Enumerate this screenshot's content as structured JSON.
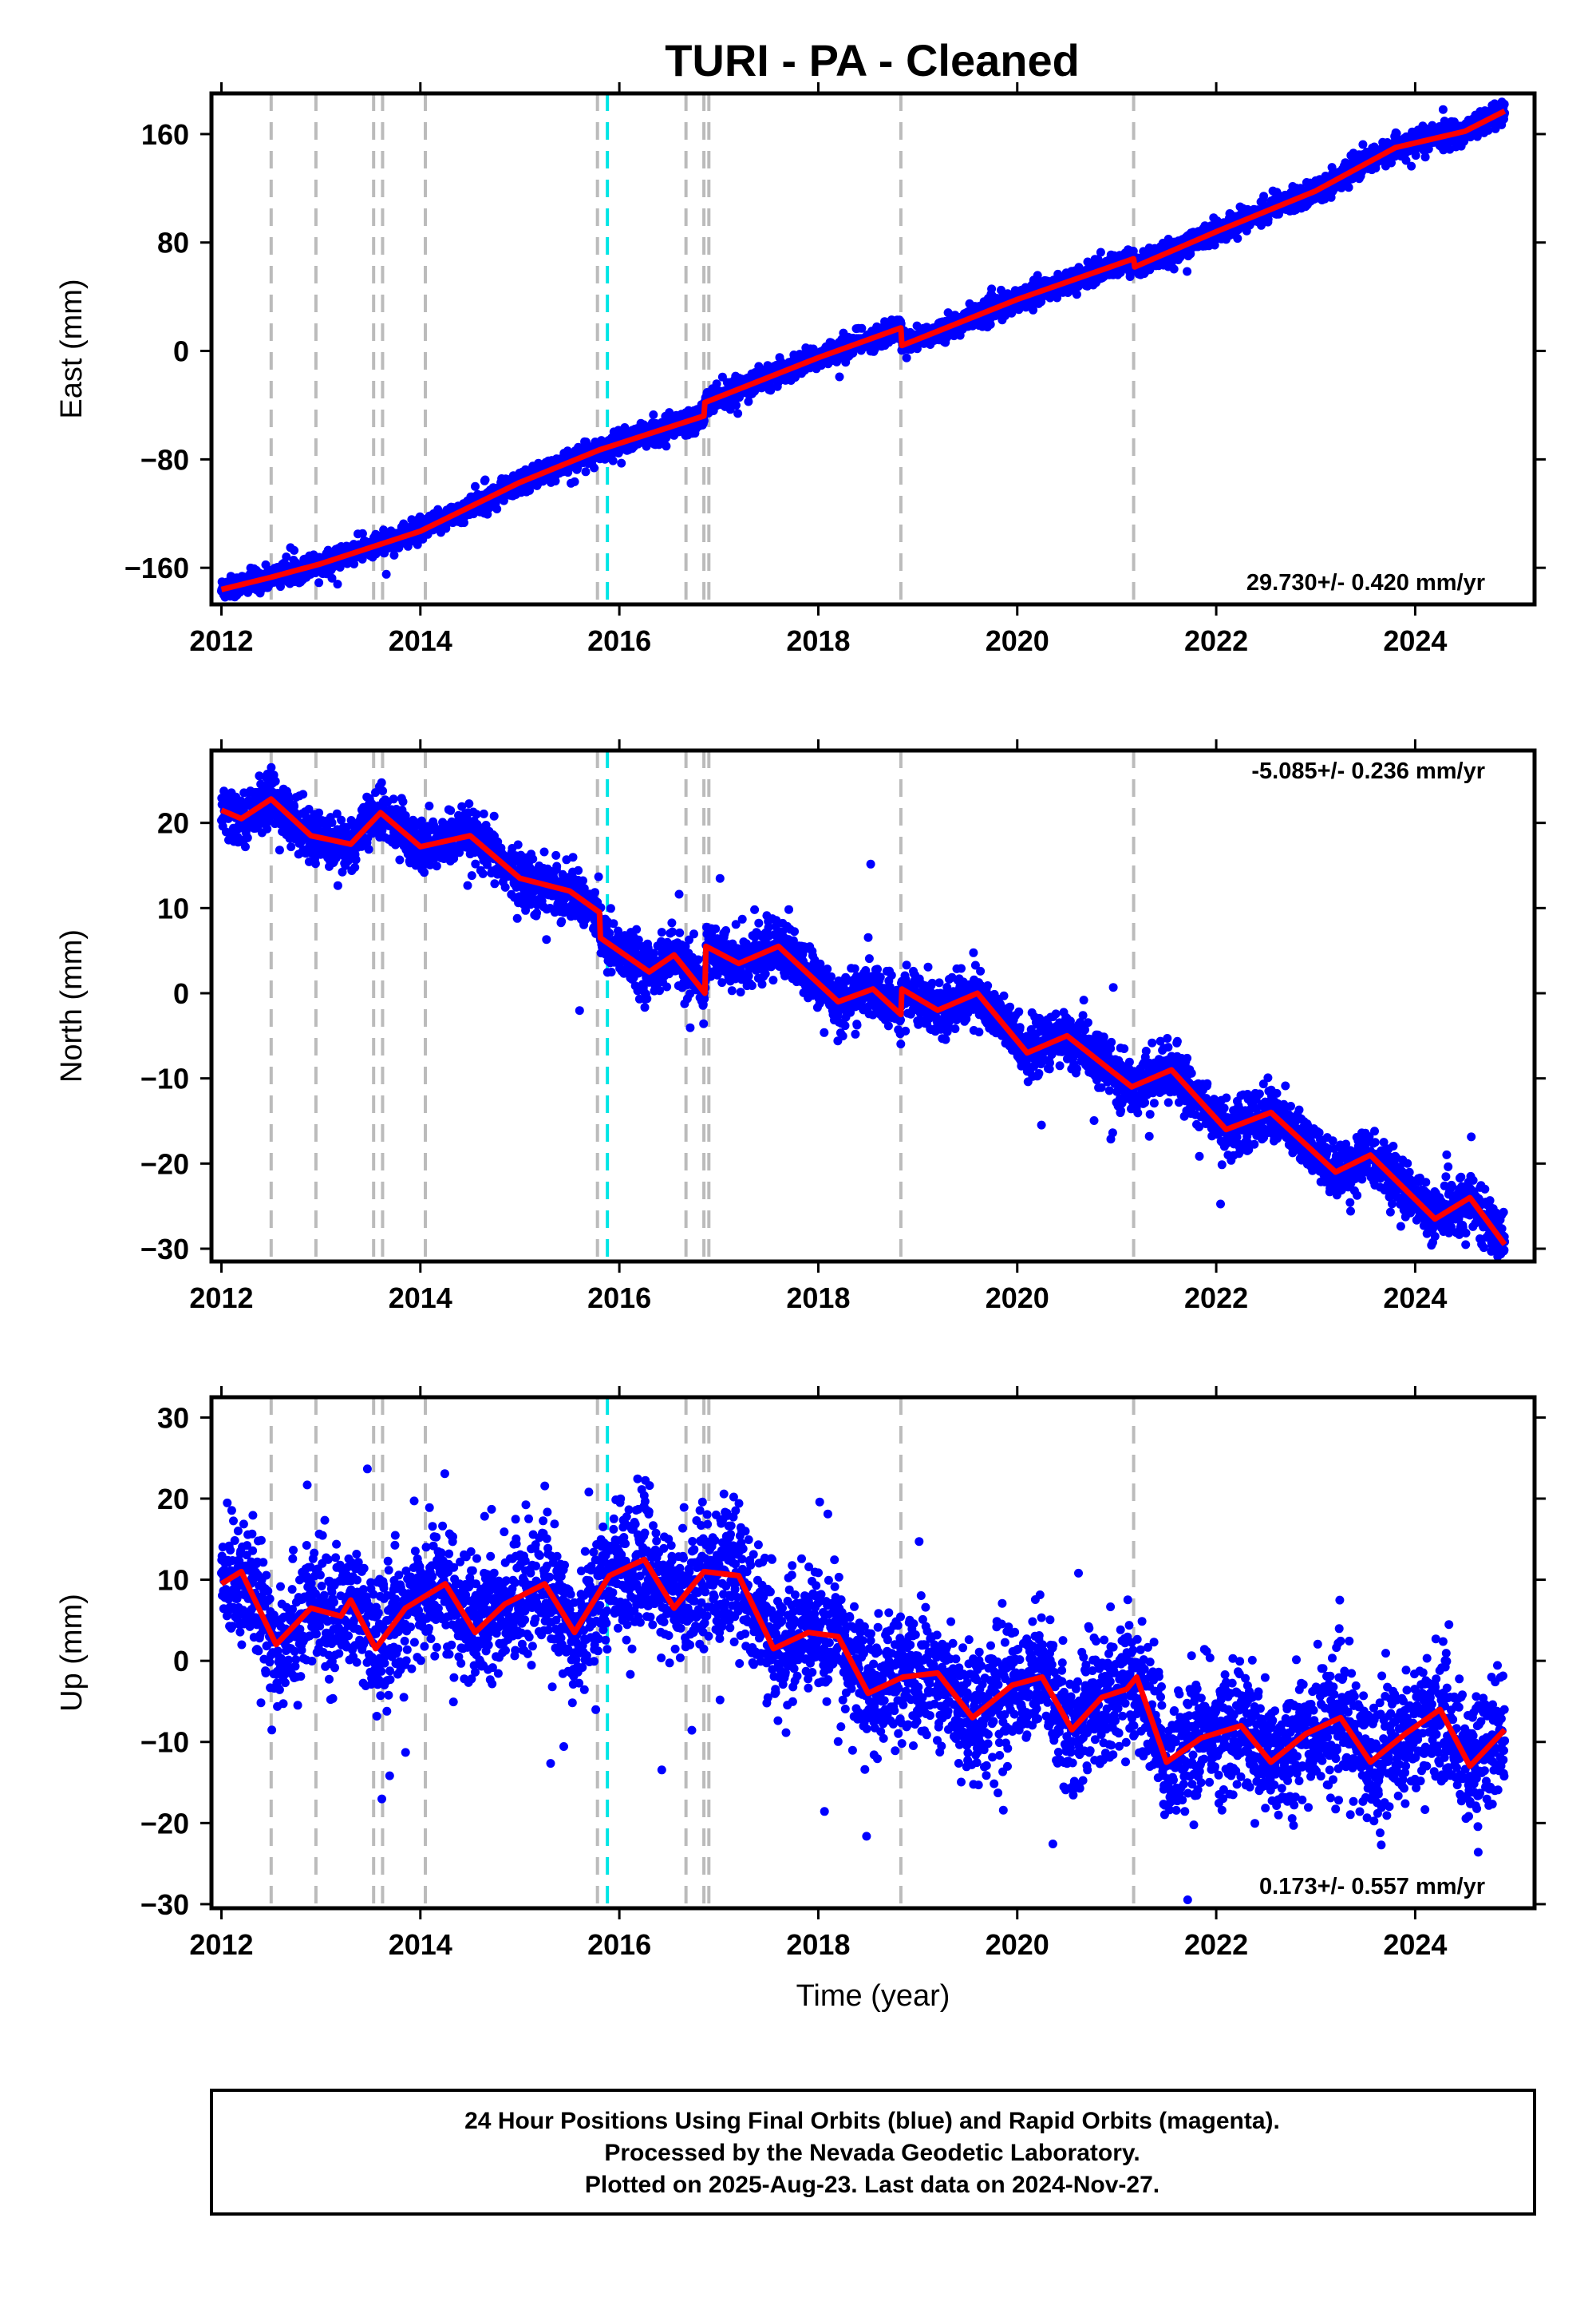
{
  "title": "TURI  - PA - Cleaned",
  "footer": {
    "line1": "24 Hour Positions Using Final Orbits (blue) and Rapid Orbits (magenta).",
    "line2": "Processed by the Nevada Geodetic Laboratory.",
    "line3": "Plotted on 2025-Aug-23. Last data on 2024-Nov-27."
  },
  "colors": {
    "points": "#0000ff",
    "model": "#ff0000",
    "offset": "#bbbbbb",
    "offset_special": "#00e5e5"
  },
  "chart_data": [
    {
      "type": "scatter",
      "component": "East",
      "ylabel": "East (mm)",
      "xlabel": "",
      "xlim": [
        2011.9,
        2025.2
      ],
      "ylim": [
        -187,
        190
      ],
      "xticks": [
        "2012",
        "2014",
        "2016",
        "2018",
        "2020",
        "2022",
        "2024"
      ],
      "yticks": [
        "160",
        "80",
        "0",
        "−80",
        "−160"
      ],
      "rate": "29.730+/- 0.420 mm/yr",
      "rate_position": "bottom-right",
      "offsets": [
        2012.5,
        2012.95,
        2013.53,
        2013.62,
        2014.05,
        2015.78,
        2016.67,
        2016.85,
        2016.9,
        2018.83,
        2021.17
      ],
      "special_offsets": [
        2015.88
      ],
      "series": [
        {
          "model": "trend",
          "anchors": [
            [
              2012.0,
              -176
            ],
            [
              2012.5,
              -167
            ],
            [
              2013.0,
              -157
            ],
            [
              2014.0,
              -133
            ],
            [
              2015.0,
              -97
            ],
            [
              2015.8,
              -73
            ],
            [
              2016.85,
              -48
            ],
            [
              2016.86,
              -38
            ],
            [
              2018.0,
              -5
            ],
            [
              2018.83,
              17
            ],
            [
              2018.84,
              4
            ],
            [
              2020.0,
              38
            ],
            [
              2021.17,
              68
            ],
            [
              2021.18,
              62
            ],
            [
              2022.0,
              88
            ],
            [
              2023.0,
              118
            ],
            [
              2023.8,
              150
            ],
            [
              2024.5,
              162
            ],
            [
              2024.9,
              177
            ]
          ],
          "noise": 4
        }
      ]
    },
    {
      "type": "scatter",
      "component": "North",
      "ylabel": "North (mm)",
      "xlabel": "",
      "xlim": [
        2011.9,
        2025.2
      ],
      "ylim": [
        -31.5,
        28.5
      ],
      "xticks": [
        "2012",
        "2014",
        "2016",
        "2018",
        "2020",
        "2022",
        "2024"
      ],
      "yticks": [
        "20",
        "10",
        "0",
        "−10",
        "−20",
        "−30"
      ],
      "rate": "-5.085+/- 0.236 mm/yr",
      "rate_position": "top-right",
      "offsets": [
        2012.5,
        2012.95,
        2013.53,
        2013.62,
        2014.05,
        2015.78,
        2016.67,
        2016.85,
        2016.9,
        2018.83,
        2021.17
      ],
      "special_offsets": [
        2015.88
      ],
      "series": [
        {
          "model": "trend",
          "anchors": [
            [
              2012.0,
              21.5
            ],
            [
              2012.2,
              20.5
            ],
            [
              2012.5,
              22.8
            ],
            [
              2012.9,
              18.5
            ],
            [
              2013.3,
              17.5
            ],
            [
              2013.6,
              21.2
            ],
            [
              2014.0,
              17.2
            ],
            [
              2014.5,
              18.5
            ],
            [
              2015.0,
              13.5
            ],
            [
              2015.5,
              12.0
            ],
            [
              2015.8,
              9.5
            ],
            [
              2015.81,
              6.5
            ],
            [
              2016.3,
              2.5
            ],
            [
              2016.55,
              4.5
            ],
            [
              2016.86,
              0.0
            ],
            [
              2016.87,
              5.5
            ],
            [
              2017.2,
              3.5
            ],
            [
              2017.6,
              5.5
            ],
            [
              2018.2,
              -1.0
            ],
            [
              2018.55,
              0.5
            ],
            [
              2018.83,
              -2.5
            ],
            [
              2018.84,
              0.5
            ],
            [
              2019.2,
              -2.0
            ],
            [
              2019.6,
              0.0
            ],
            [
              2020.1,
              -7.0
            ],
            [
              2020.5,
              -5.0
            ],
            [
              2021.15,
              -11.0
            ],
            [
              2021.55,
              -9.0
            ],
            [
              2022.1,
              -16.0
            ],
            [
              2022.55,
              -14.0
            ],
            [
              2023.2,
              -21.0
            ],
            [
              2023.55,
              -19.0
            ],
            [
              2024.2,
              -26.5
            ],
            [
              2024.55,
              -24.0
            ],
            [
              2024.9,
              -29.5
            ]
          ],
          "noise": 1.5
        }
      ]
    },
    {
      "type": "scatter",
      "component": "Up",
      "ylabel": "Up (mm)",
      "xlabel": "Time (year)",
      "xlim": [
        2011.9,
        2025.2
      ],
      "ylim": [
        -30.5,
        32.5
      ],
      "xticks": [
        "2012",
        "2014",
        "2016",
        "2018",
        "2020",
        "2022",
        "2024"
      ],
      "yticks": [
        "30",
        "20",
        "10",
        "0",
        "−10",
        "−20",
        "−30"
      ],
      "rate": "0.173+/- 0.557 mm/yr",
      "rate_position": "bottom-right",
      "offsets": [
        2012.5,
        2012.95,
        2013.53,
        2013.62,
        2014.05,
        2015.78,
        2016.67,
        2016.85,
        2016.9,
        2018.83,
        2021.17
      ],
      "special_offsets": [
        2015.88
      ],
      "series": [
        {
          "model": "trend",
          "anchors": [
            [
              2012.0,
              9.5
            ],
            [
              2012.2,
              11.0
            ],
            [
              2012.55,
              2.0
            ],
            [
              2012.9,
              6.5
            ],
            [
              2013.2,
              5.5
            ],
            [
              2013.3,
              7.5
            ],
            [
              2013.55,
              1.5
            ],
            [
              2013.85,
              6.5
            ],
            [
              2014.25,
              9.5
            ],
            [
              2014.55,
              3.5
            ],
            [
              2014.85,
              7.0
            ],
            [
              2015.25,
              9.5
            ],
            [
              2015.55,
              3.5
            ],
            [
              2015.9,
              10.5
            ],
            [
              2016.25,
              12.5
            ],
            [
              2016.55,
              6.5
            ],
            [
              2016.85,
              11.0
            ],
            [
              2017.2,
              10.5
            ],
            [
              2017.55,
              1.5
            ],
            [
              2017.9,
              3.5
            ],
            [
              2018.2,
              3.0
            ],
            [
              2018.5,
              -4.0
            ],
            [
              2018.85,
              -2.0
            ],
            [
              2019.2,
              -1.5
            ],
            [
              2019.55,
              -7.0
            ],
            [
              2019.95,
              -3.0
            ],
            [
              2020.25,
              -2.0
            ],
            [
              2020.55,
              -8.5
            ],
            [
              2020.85,
              -4.5
            ],
            [
              2021.1,
              -3.5
            ],
            [
              2021.2,
              -2.0
            ],
            [
              2021.5,
              -12.5
            ],
            [
              2021.85,
              -9.5
            ],
            [
              2022.25,
              -8.0
            ],
            [
              2022.55,
              -12.5
            ],
            [
              2022.9,
              -9.0
            ],
            [
              2023.25,
              -7.0
            ],
            [
              2023.55,
              -12.5
            ],
            [
              2023.9,
              -9.0
            ],
            [
              2024.25,
              -6.0
            ],
            [
              2024.55,
              -13.0
            ],
            [
              2024.9,
              -8.5
            ]
          ],
          "noise": 3.8
        }
      ]
    }
  ]
}
